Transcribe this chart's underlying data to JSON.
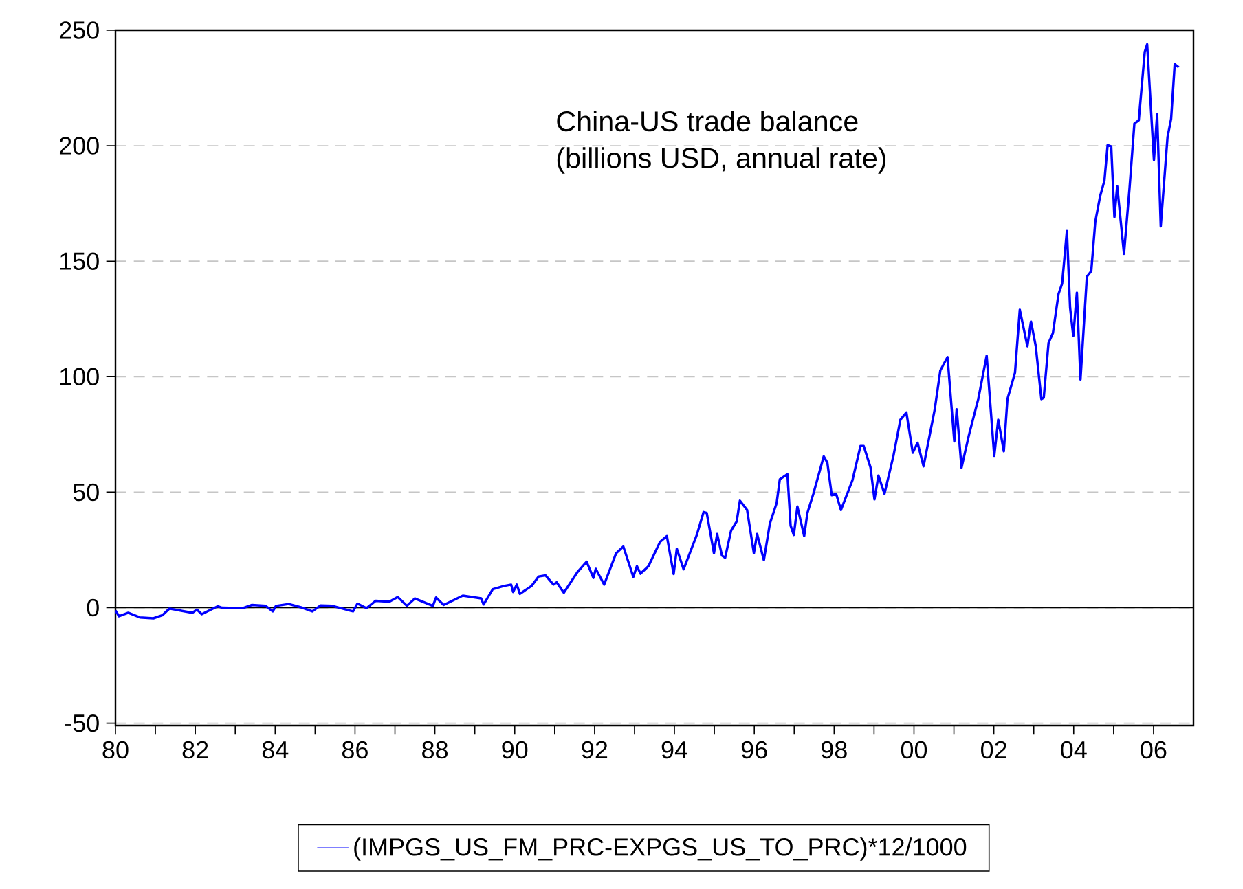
{
  "chart_data": {
    "type": "line",
    "annotations": [
      "China-US trade balance",
      "(billions USD, annual rate)"
    ],
    "xlim": [
      1980,
      2007
    ],
    "ylim": [
      -51,
      250
    ],
    "xticks": [
      {
        "value": 1980,
        "label": "80"
      },
      {
        "value": 1981,
        "label": null
      },
      {
        "value": 1982,
        "label": "82"
      },
      {
        "value": 1983,
        "label": null
      },
      {
        "value": 1984,
        "label": "84"
      },
      {
        "value": 1985,
        "label": null
      },
      {
        "value": 1986,
        "label": "86"
      },
      {
        "value": 1987,
        "label": null
      },
      {
        "value": 1988,
        "label": "88"
      },
      {
        "value": 1989,
        "label": null
      },
      {
        "value": 1990,
        "label": "90"
      },
      {
        "value": 1991,
        "label": null
      },
      {
        "value": 1992,
        "label": "92"
      },
      {
        "value": 1993,
        "label": null
      },
      {
        "value": 1994,
        "label": "94"
      },
      {
        "value": 1995,
        "label": null
      },
      {
        "value": 1996,
        "label": "96"
      },
      {
        "value": 1997,
        "label": null
      },
      {
        "value": 1998,
        "label": "98"
      },
      {
        "value": 1999,
        "label": null
      },
      {
        "value": 2000,
        "label": "00"
      },
      {
        "value": 2001,
        "label": null
      },
      {
        "value": 2002,
        "label": "02"
      },
      {
        "value": 2003,
        "label": null
      },
      {
        "value": 2004,
        "label": "04"
      },
      {
        "value": 2005,
        "label": null
      },
      {
        "value": 2006,
        "label": "06"
      }
    ],
    "yticks": [
      -50,
      0,
      50,
      100,
      150,
      200,
      250
    ],
    "grid": "y",
    "legend": "bottom",
    "ref_lines": [
      {
        "axis": "y",
        "value": 0,
        "color": "#000000"
      }
    ],
    "series": [
      {
        "name": "(IMPGS_US_FM_PRC-EXPGS_US_TO_PRC)*12/1000",
        "color": "#0000ff",
        "x": [
          1980.0,
          1980.09,
          1980.32,
          1980.61,
          1980.95,
          1981.18,
          1981.35,
          1981.93,
          1982.04,
          1982.16,
          1982.56,
          1982.67,
          1983.19,
          1983.42,
          1983.76,
          1983.94,
          1984.02,
          1984.34,
          1984.68,
          1984.93,
          1985.14,
          1985.43,
          1985.95,
          1986.06,
          1986.29,
          1986.52,
          1986.86,
          1987.07,
          1987.3,
          1987.5,
          1987.95,
          1988.03,
          1988.22,
          1988.7,
          1989.16,
          1989.22,
          1989.45,
          1989.73,
          1989.91,
          1989.96,
          1990.05,
          1990.13,
          1990.42,
          1990.6,
          1990.77,
          1990.97,
          1991.05,
          1991.23,
          1991.57,
          1991.8,
          1991.97,
          1992.03,
          1992.24,
          1992.54,
          1992.72,
          1992.97,
          1993.06,
          1993.15,
          1993.35,
          1993.64,
          1993.81,
          1993.98,
          1994.06,
          1994.23,
          1994.56,
          1994.73,
          1994.81,
          1994.99,
          1995.07,
          1995.19,
          1995.27,
          1995.42,
          1995.56,
          1995.64,
          1995.82,
          1995.99,
          1996.07,
          1996.24,
          1996.39,
          1996.56,
          1996.64,
          1996.83,
          1996.91,
          1996.99,
          1997.08,
          1997.25,
          1997.33,
          1997.48,
          1997.74,
          1997.83,
          1997.94,
          1998.05,
          1998.17,
          1998.46,
          1998.66,
          1998.74,
          1998.91,
          1999.01,
          1999.11,
          1999.26,
          1999.49,
          1999.66,
          1999.81,
          1999.97,
          2000.09,
          2000.24,
          2000.52,
          2000.66,
          2000.84,
          2001.01,
          2001.07,
          2001.19,
          2001.38,
          2001.61,
          2001.82,
          2002.01,
          2002.11,
          2002.25,
          2002.34,
          2002.53,
          2002.65,
          2002.84,
          2002.93,
          2003.05,
          2003.19,
          2003.25,
          2003.37,
          2003.48,
          2003.62,
          2003.71,
          2003.83,
          2003.91,
          2003.99,
          2004.08,
          2004.17,
          2004.33,
          2004.44,
          2004.54,
          2004.66,
          2004.77,
          2004.85,
          2004.94,
          2005.02,
          2005.09,
          2005.26,
          2005.4,
          2005.52,
          2005.63,
          2005.78,
          2005.84,
          2006.01,
          2006.09,
          2006.18,
          2006.35,
          2006.44,
          2006.53,
          2006.63
        ],
        "values": [
          -1.2,
          -3.7,
          -2.2,
          -4.2,
          -4.6,
          -3.2,
          -0.4,
          -2.2,
          -0.8,
          -2.8,
          0.6,
          0,
          -0.2,
          1.2,
          0.8,
          -1.6,
          0.8,
          1.6,
          0,
          -1.6,
          1,
          0.8,
          -1.6,
          1.8,
          -0.2,
          3,
          2.6,
          4.6,
          0.8,
          4,
          0.8,
          4.4,
          1.2,
          5.2,
          4,
          1.4,
          8,
          9.4,
          10,
          6.8,
          10,
          6,
          9.4,
          13.5,
          14,
          10,
          11,
          6.5,
          15.4,
          19.9,
          12.9,
          16.8,
          10,
          23.6,
          26.5,
          13.3,
          18,
          14.7,
          18,
          28.5,
          31,
          14.6,
          25.5,
          16.6,
          31.5,
          41.4,
          41,
          23.6,
          31.9,
          22.6,
          21.6,
          33.4,
          37.4,
          46.3,
          42.3,
          23.6,
          31.9,
          20.6,
          36.4,
          45.3,
          55.6,
          57.8,
          35.5,
          31.5,
          43.8,
          31,
          41,
          49.3,
          65.5,
          62.8,
          48.7,
          49.3,
          42.3,
          55.2,
          70,
          70,
          60.8,
          46.9,
          57.2,
          49.3,
          66.1,
          81.4,
          84.5,
          67.1,
          71.4,
          61.2,
          85.9,
          102.7,
          108.5,
          72,
          85.9,
          60.6,
          75,
          90.3,
          109.1,
          65.7,
          81.4,
          67.7,
          90.3,
          101.7,
          129,
          113.2,
          123.9,
          113.2,
          90.3,
          90.9,
          114.6,
          118.9,
          135.8,
          140.3,
          163.1,
          129.9,
          117.6,
          136.4,
          98.8,
          143.3,
          145.7,
          167,
          178,
          184.9,
          200.3,
          199.7,
          169.1,
          182.5,
          153.2,
          181.9,
          209.6,
          211,
          240.7,
          243.9,
          193.8,
          213.6,
          165.1,
          203.7,
          211.6,
          235.3,
          234
        ]
      }
    ]
  }
}
